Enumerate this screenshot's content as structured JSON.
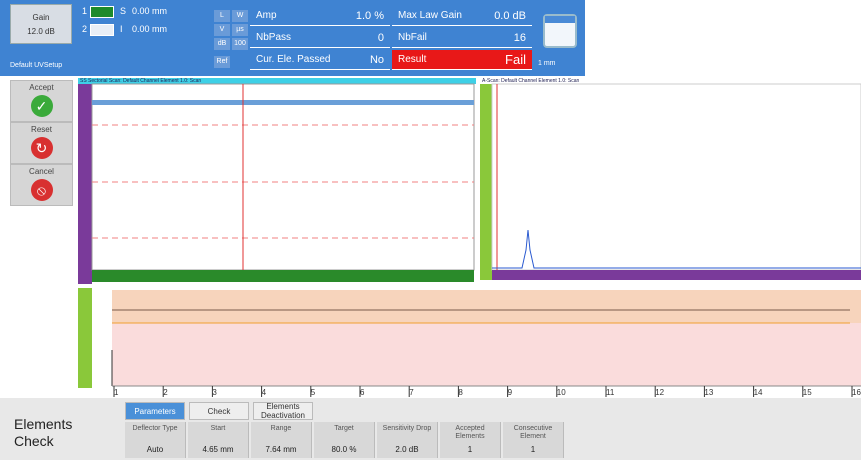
{
  "top_bar": {
    "gain_label": "Gain",
    "gain_value": "12.0 dB",
    "setup": "Default UVSetup",
    "probes": [
      {
        "index": "1",
        "label": "S",
        "value": "0.00 mm"
      },
      {
        "index": "2",
        "label": "I",
        "value": "0.00 mm"
      }
    ],
    "mini_buttons": [
      "L",
      "W",
      "V",
      "µs",
      "dB",
      "100",
      "Ref"
    ],
    "readings": [
      {
        "label": "Amp",
        "value": "1.0 %"
      },
      {
        "label": "Max Law Gain",
        "value": "0.0 dB"
      },
      {
        "label": "NbPass",
        "value": "0"
      },
      {
        "label": "NbFail",
        "value": "16"
      },
      {
        "label": "Cur. Ele. Passed",
        "value": "No"
      },
      {
        "label": "Result",
        "value": "Fail"
      }
    ],
    "unit": "1 mm"
  },
  "sidebar": [
    "Accept",
    "Reset",
    "Cancel"
  ],
  "views": {
    "left_title": "SS Sectorial Scan: Default Channel Element 1.0: Scan",
    "right_title": "A-Scan: Default Channel Element 1.0: Scan"
  },
  "bottom_axis": [
    "1",
    "2",
    "3",
    "4",
    "5",
    "6",
    "7",
    "8",
    "9",
    "10",
    "11",
    "12",
    "13",
    "14",
    "15",
    "16"
  ],
  "panel": {
    "title": "Elements Check",
    "tabs": [
      "Parameters",
      "Check",
      "Elements Deactivation"
    ],
    "fields": [
      {
        "label": "Deflector Type",
        "value": "Auto"
      },
      {
        "label": "Start",
        "value": "4.65 mm"
      },
      {
        "label": "Range",
        "value": "7.64 mm"
      },
      {
        "label": "Target",
        "value": "80.0 %"
      },
      {
        "label": "Sensitivity Drop",
        "value": "2.0 dB"
      },
      {
        "label": "Accepted Elements",
        "value": "1"
      },
      {
        "label": "Consecutive Element",
        "value": "1"
      }
    ]
  }
}
